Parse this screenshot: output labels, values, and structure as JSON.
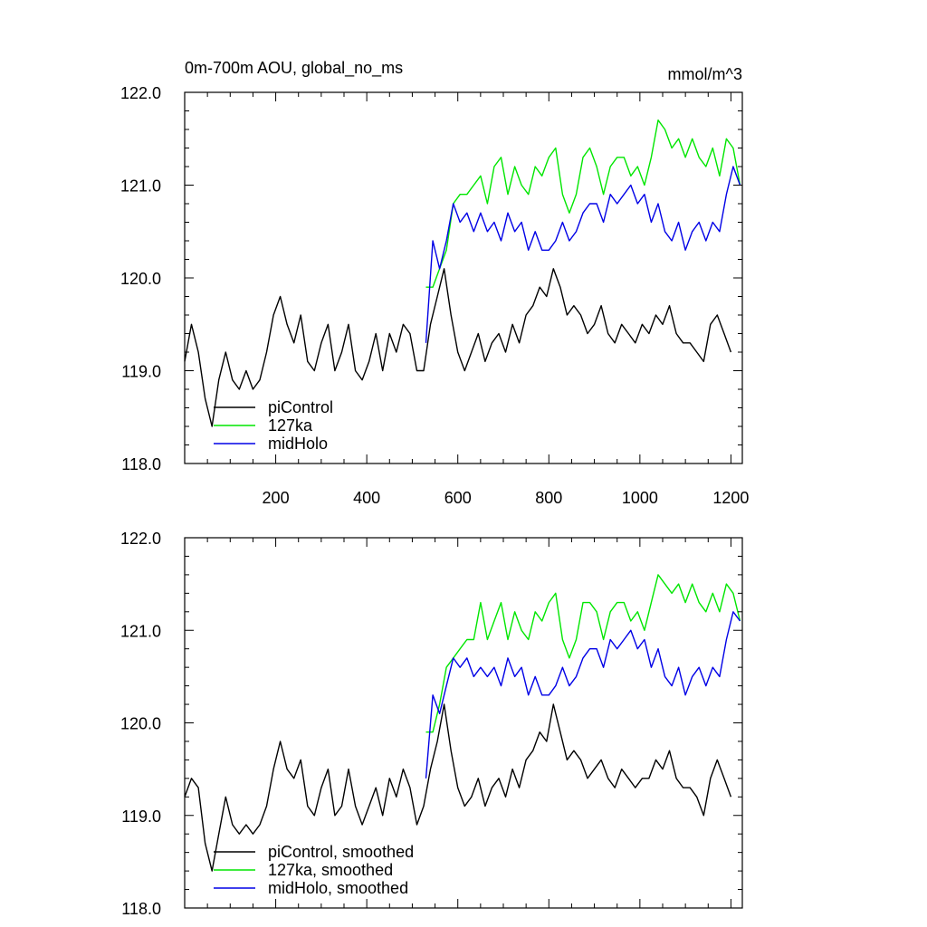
{
  "figure": {
    "title_left": "0m-700m AOU, global_no_ms",
    "title_right": "mmol/m^3"
  },
  "colors": {
    "piControl": "#000000",
    "127ka": "#00e600",
    "midHolo": "#0000e6"
  },
  "chart_data": [
    {
      "type": "line",
      "title": "0m-700m AOU, global_no_ms",
      "units": "mmol/m^3",
      "xlabel": "",
      "ylabel": "",
      "xlim": [
        0,
        1225
      ],
      "ylim": [
        118.0,
        122.0
      ],
      "x_ticks": [
        200,
        400,
        600,
        800,
        1000,
        1200
      ],
      "x_tick_labels": [
        "200",
        "400",
        "600",
        "800",
        "1000",
        "1200"
      ],
      "y_ticks": [
        118.0,
        119.0,
        120.0,
        121.0,
        122.0
      ],
      "y_tick_labels": [
        "118.0",
        "119.0",
        "120.0",
        "121.0",
        "122.0"
      ],
      "legend": [
        "piControl",
        "127ka",
        "midHolo"
      ],
      "legend_position": "bottom-left",
      "series": [
        {
          "name": "piControl",
          "key": "piControl",
          "x": [
            0,
            15,
            30,
            45,
            60,
            75,
            90,
            105,
            120,
            135,
            150,
            165,
            180,
            195,
            210,
            225,
            240,
            255,
            270,
            285,
            300,
            315,
            330,
            345,
            360,
            375,
            390,
            405,
            420,
            435,
            450,
            465,
            480,
            495,
            510,
            525,
            540,
            555,
            570,
            585,
            600,
            615,
            630,
            645,
            660,
            675,
            690,
            705,
            720,
            735,
            750,
            765,
            780,
            795,
            810,
            825,
            840,
            855,
            870,
            885,
            900,
            915,
            930,
            945,
            960,
            975,
            990,
            1005,
            1020,
            1035,
            1050,
            1065,
            1080,
            1095,
            1110,
            1125,
            1140,
            1155,
            1170,
            1185,
            1200
          ],
          "values": [
            119.1,
            119.5,
            119.2,
            118.7,
            118.4,
            118.9,
            119.2,
            118.9,
            118.8,
            119.0,
            118.8,
            118.9,
            119.2,
            119.6,
            119.8,
            119.5,
            119.3,
            119.6,
            119.1,
            119.0,
            119.3,
            119.5,
            119.0,
            119.2,
            119.5,
            119.0,
            118.9,
            119.1,
            119.4,
            119.0,
            119.4,
            119.2,
            119.5,
            119.4,
            119.0,
            119.0,
            119.5,
            119.8,
            120.1,
            119.6,
            119.2,
            119.0,
            119.2,
            119.4,
            119.1,
            119.3,
            119.4,
            119.2,
            119.5,
            119.3,
            119.6,
            119.7,
            119.9,
            119.8,
            120.1,
            119.9,
            119.6,
            119.7,
            119.6,
            119.4,
            119.5,
            119.7,
            119.4,
            119.3,
            119.5,
            119.4,
            119.3,
            119.5,
            119.4,
            119.6,
            119.5,
            119.7,
            119.4,
            119.3,
            119.3,
            119.2,
            119.1,
            119.5,
            119.6,
            119.4,
            119.2
          ]
        },
        {
          "name": "127ka",
          "key": "127ka",
          "x": [
            530,
            545,
            560,
            575,
            590,
            605,
            620,
            635,
            650,
            665,
            680,
            695,
            710,
            725,
            740,
            755,
            770,
            785,
            800,
            815,
            830,
            845,
            860,
            875,
            890,
            905,
            920,
            935,
            950,
            965,
            980,
            995,
            1010,
            1025,
            1040,
            1055,
            1070,
            1085,
            1100,
            1115,
            1130,
            1145,
            1160,
            1175,
            1190,
            1205,
            1220
          ],
          "values": [
            119.9,
            119.9,
            120.1,
            120.3,
            120.8,
            120.9,
            120.9,
            121.0,
            121.1,
            120.8,
            121.2,
            121.3,
            120.9,
            121.2,
            121.0,
            120.9,
            121.2,
            121.1,
            121.3,
            121.4,
            120.9,
            120.7,
            120.9,
            121.3,
            121.4,
            121.2,
            120.9,
            121.2,
            121.3,
            121.3,
            121.1,
            121.2,
            121.0,
            121.3,
            121.7,
            121.6,
            121.4,
            121.5,
            121.3,
            121.5,
            121.3,
            121.2,
            121.4,
            121.1,
            121.5,
            121.4,
            121.0
          ]
        },
        {
          "name": "midHolo",
          "key": "midHolo",
          "x": [
            530,
            545,
            560,
            575,
            590,
            605,
            620,
            635,
            650,
            665,
            680,
            695,
            710,
            725,
            740,
            755,
            770,
            785,
            800,
            815,
            830,
            845,
            860,
            875,
            890,
            905,
            920,
            935,
            950,
            965,
            980,
            995,
            1010,
            1025,
            1040,
            1055,
            1070,
            1085,
            1100,
            1115,
            1130,
            1145,
            1160,
            1175,
            1190,
            1205,
            1220
          ],
          "values": [
            119.3,
            120.4,
            120.1,
            120.4,
            120.8,
            120.6,
            120.7,
            120.5,
            120.7,
            120.5,
            120.6,
            120.4,
            120.7,
            120.5,
            120.6,
            120.3,
            120.5,
            120.3,
            120.3,
            120.4,
            120.6,
            120.4,
            120.5,
            120.7,
            120.8,
            120.8,
            120.6,
            120.9,
            120.8,
            120.9,
            121.0,
            120.8,
            120.9,
            120.6,
            120.8,
            120.5,
            120.4,
            120.6,
            120.3,
            120.5,
            120.6,
            120.4,
            120.6,
            120.5,
            120.9,
            121.2,
            121.0
          ]
        }
      ]
    },
    {
      "type": "line",
      "title": "",
      "xlabel": "",
      "ylabel": "",
      "xlim": [
        0,
        1225
      ],
      "ylim": [
        118.0,
        122.0
      ],
      "x_ticks": [
        200,
        400,
        600,
        800,
        1000,
        1200
      ],
      "x_tick_labels": [],
      "y_ticks": [
        118.0,
        119.0,
        120.0,
        121.0,
        122.0
      ],
      "y_tick_labels": [
        "118.0",
        "119.0",
        "120.0",
        "121.0",
        "122.0"
      ],
      "legend": [
        "piControl, smoothed",
        "127ka, smoothed",
        "midHolo, smoothed"
      ],
      "legend_position": "bottom-left",
      "series": [
        {
          "name": "piControl, smoothed",
          "key": "piControl",
          "x": [
            0,
            15,
            30,
            45,
            60,
            75,
            90,
            105,
            120,
            135,
            150,
            165,
            180,
            195,
            210,
            225,
            240,
            255,
            270,
            285,
            300,
            315,
            330,
            345,
            360,
            375,
            390,
            405,
            420,
            435,
            450,
            465,
            480,
            495,
            510,
            525,
            540,
            555,
            570,
            585,
            600,
            615,
            630,
            645,
            660,
            675,
            690,
            705,
            720,
            735,
            750,
            765,
            780,
            795,
            810,
            825,
            840,
            855,
            870,
            885,
            900,
            915,
            930,
            945,
            960,
            975,
            990,
            1005,
            1020,
            1035,
            1050,
            1065,
            1080,
            1095,
            1110,
            1125,
            1140,
            1155,
            1170,
            1185,
            1200
          ],
          "values": [
            119.2,
            119.4,
            119.3,
            118.7,
            118.4,
            118.8,
            119.2,
            118.9,
            118.8,
            118.9,
            118.8,
            118.9,
            119.1,
            119.5,
            119.8,
            119.5,
            119.4,
            119.6,
            119.1,
            119.0,
            119.3,
            119.5,
            119.0,
            119.1,
            119.5,
            119.1,
            118.9,
            119.1,
            119.3,
            119.0,
            119.4,
            119.2,
            119.5,
            119.3,
            118.9,
            119.1,
            119.5,
            119.8,
            120.2,
            119.7,
            119.3,
            119.1,
            119.2,
            119.4,
            119.1,
            119.3,
            119.4,
            119.2,
            119.5,
            119.3,
            119.6,
            119.7,
            119.9,
            119.8,
            120.2,
            119.9,
            119.6,
            119.7,
            119.6,
            119.4,
            119.5,
            119.6,
            119.4,
            119.3,
            119.5,
            119.4,
            119.3,
            119.4,
            119.4,
            119.6,
            119.5,
            119.7,
            119.4,
            119.3,
            119.3,
            119.2,
            119.0,
            119.4,
            119.6,
            119.4,
            119.2
          ]
        },
        {
          "name": "127ka, smoothed",
          "key": "127ka",
          "x": [
            530,
            545,
            560,
            575,
            590,
            605,
            620,
            635,
            650,
            665,
            680,
            695,
            710,
            725,
            740,
            755,
            770,
            785,
            800,
            815,
            830,
            845,
            860,
            875,
            890,
            905,
            920,
            935,
            950,
            965,
            980,
            995,
            1010,
            1025,
            1040,
            1055,
            1070,
            1085,
            1100,
            1115,
            1130,
            1145,
            1160,
            1175,
            1190,
            1205,
            1220
          ],
          "values": [
            119.9,
            119.9,
            120.2,
            120.6,
            120.7,
            120.8,
            120.9,
            120.9,
            121.3,
            120.9,
            121.1,
            121.3,
            120.9,
            121.2,
            121.0,
            120.9,
            121.2,
            121.1,
            121.3,
            121.4,
            120.9,
            120.7,
            120.9,
            121.3,
            121.3,
            121.2,
            120.9,
            121.2,
            121.3,
            121.3,
            121.1,
            121.2,
            121.0,
            121.3,
            121.6,
            121.5,
            121.4,
            121.5,
            121.3,
            121.5,
            121.3,
            121.2,
            121.4,
            121.2,
            121.5,
            121.4,
            121.1
          ]
        },
        {
          "name": "midHolo, smoothed",
          "key": "midHolo",
          "x": [
            530,
            545,
            560,
            575,
            590,
            605,
            620,
            635,
            650,
            665,
            680,
            695,
            710,
            725,
            740,
            755,
            770,
            785,
            800,
            815,
            830,
            845,
            860,
            875,
            890,
            905,
            920,
            935,
            950,
            965,
            980,
            995,
            1010,
            1025,
            1040,
            1055,
            1070,
            1085,
            1100,
            1115,
            1130,
            1145,
            1160,
            1175,
            1190,
            1205,
            1220
          ],
          "values": [
            119.4,
            120.3,
            120.1,
            120.4,
            120.7,
            120.6,
            120.7,
            120.5,
            120.6,
            120.5,
            120.6,
            120.4,
            120.7,
            120.5,
            120.6,
            120.3,
            120.5,
            120.3,
            120.3,
            120.4,
            120.6,
            120.4,
            120.5,
            120.7,
            120.8,
            120.8,
            120.6,
            120.9,
            120.8,
            120.9,
            121.0,
            120.8,
            120.9,
            120.6,
            120.8,
            120.5,
            120.4,
            120.6,
            120.3,
            120.5,
            120.6,
            120.4,
            120.6,
            120.5,
            120.9,
            121.2,
            121.1
          ]
        }
      ]
    }
  ]
}
